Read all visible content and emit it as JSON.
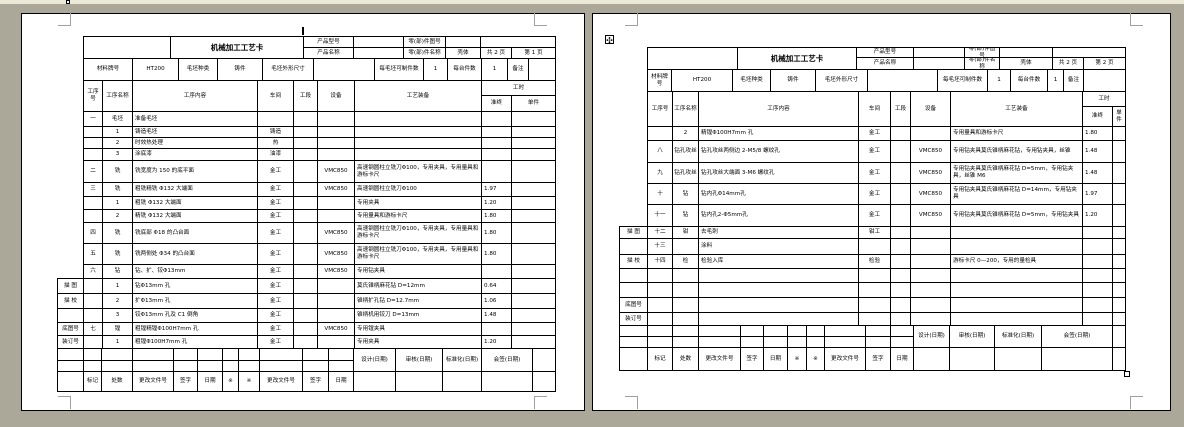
{
  "colors": {
    "workspace": "#aba899",
    "page": "#ffffff",
    "ruler": "#ece9d8",
    "grid": "#000000"
  },
  "icons": {
    "move_handle": "move-icon",
    "resize_handle": "resize-handle-icon",
    "text_cursor": "text-cursor"
  },
  "card": {
    "title": "机械加工工艺卡",
    "product_model_label": "产品型号",
    "product_name_label": "产品名称",
    "part_no_label": "零(部)件图号",
    "part_name_label": "零(部)件名称",
    "part_name": "壳体",
    "total_pages": "共 2 页",
    "material_label": "材料牌号",
    "material": "HT200",
    "blank_type_label": "毛坯种类",
    "blank_type": "铸件",
    "blank_size_label": "毛坯外形尺寸",
    "per_blank_label": "每毛坯可制件数",
    "per_blank": "1",
    "per_unit_label": "每台件数",
    "per_unit": "1",
    "remark_label": "备注",
    "headers": {
      "no": "工序号",
      "name": "工序名称",
      "content": "工序内容",
      "shop": "车间",
      "section": "工段",
      "equip": "设备",
      "tooling": "工艺装备",
      "time": "工时",
      "prep": "准终",
      "unit": "单件"
    },
    "footer": {
      "design": "设计(日期)",
      "review": "审核(日期)",
      "standard": "标准化(日期)",
      "sign": "会签(日期)",
      "mark": "标记",
      "count": "处数",
      "change_doc": "更改文件号",
      "signature": "签字",
      "date": "日期",
      "star": "※"
    }
  },
  "page1": {
    "page_no": "第 1 页",
    "rows": [
      {
        "side": "",
        "no": "一",
        "name": "毛坯",
        "content": "准备毛坯",
        "shop": "",
        "sec": "",
        "equip": "",
        "tool": "",
        "prep": "",
        "unit": ""
      },
      {
        "side": "",
        "no": "",
        "name": "1",
        "content": "铸造毛坯",
        "shop": "铸造",
        "sec": "",
        "equip": "",
        "tool": "",
        "prep": "",
        "unit": ""
      },
      {
        "side": "",
        "no": "",
        "name": "2",
        "content": "时效热处理",
        "shop": "热",
        "sec": "",
        "equip": "",
        "tool": "",
        "prep": "",
        "unit": ""
      },
      {
        "side": "",
        "no": "",
        "name": "3",
        "content": "涂底漆",
        "shop": "油漆",
        "sec": "",
        "equip": "",
        "tool": "",
        "prep": "",
        "unit": ""
      },
      {
        "side": "",
        "no": "二",
        "name": "铣",
        "content": "铣宽度为 150 的底平面",
        "shop": "金工",
        "sec": "",
        "equip": "VMC850",
        "tool": "高速钢圆柱立铣刀Φ100，专用夹具，专用量具和游标卡尺",
        "prep": "",
        "unit": ""
      },
      {
        "side": "",
        "no": "三",
        "name": "铣",
        "content": "粗铣精铣 Φ132 大端面",
        "shop": "金工",
        "sec": "",
        "equip": "VMC850",
        "tool": "高速钢圆柱立铣刀Φ100",
        "prep": "1.97",
        "unit": ""
      },
      {
        "side": "",
        "no": "",
        "name": "1",
        "content": "粗铣 Φ132 大端面",
        "shop": "金工",
        "sec": "",
        "equip": "",
        "tool": "专用夹具",
        "prep": "1.20",
        "unit": ""
      },
      {
        "side": "",
        "no": "",
        "name": "2",
        "content": "精铣 Φ132 大端面",
        "shop": "金工",
        "sec": "",
        "equip": "",
        "tool": "专用量具和游标卡尺",
        "prep": "1.80",
        "unit": ""
      },
      {
        "side": "",
        "no": "四",
        "name": "铣",
        "content": "铣底部 Φ18 的凸台面",
        "shop": "金工",
        "sec": "",
        "equip": "VMC850",
        "tool": "高速钢圆柱立铣刀Φ100，专用夹具，专用量具和游标卡尺",
        "prep": "1.80",
        "unit": ""
      },
      {
        "side": "",
        "no": "五",
        "name": "铣",
        "content": "铣两侧处 Φ34 的凸台面",
        "shop": "金工",
        "sec": "",
        "equip": "VMC850",
        "tool": "高速钢圆柱立铣刀Φ100，专用夹具，专用量具和游标卡尺",
        "prep": "1.80",
        "unit": ""
      },
      {
        "side": "",
        "no": "六",
        "name": "钻",
        "content": "钻、扩、铰Φ13mm",
        "shop": "金工",
        "sec": "",
        "equip": "VMC850",
        "tool": "专用钻夹具",
        "prep": "",
        "unit": ""
      },
      {
        "side": "描 图",
        "no": "",
        "name": "1",
        "content": "钻Φ13mm 孔",
        "shop": "金工",
        "sec": "",
        "equip": "",
        "tool": "莫氏锥柄麻花钻 D=12mm",
        "prep": "0.64",
        "unit": ""
      },
      {
        "side": "描 校",
        "no": "",
        "name": "2",
        "content": "扩Φ13mm 孔",
        "shop": "金工",
        "sec": "",
        "equip": "",
        "tool": "锥柄扩孔钻 D=12.7mm",
        "prep": "1.06",
        "unit": ""
      },
      {
        "side": "",
        "no": "",
        "name": "3",
        "content": "铰Φ13mm 孔及 C1 倒角",
        "shop": "金工",
        "sec": "",
        "equip": "",
        "tool": "锥柄机用铰刀 D=13mm",
        "prep": "1.48",
        "unit": ""
      },
      {
        "side": "底图号",
        "no": "七",
        "name": "镗",
        "content": "粗镗精镗Φ100H7mm 孔",
        "shop": "金工",
        "sec": "",
        "equip": "VMC850",
        "tool": "专用镗夹具",
        "prep": "",
        "unit": ""
      },
      {
        "side": "装订号",
        "no": "",
        "name": "1",
        "content": "粗镗Φ100H7mm 孔",
        "shop": "金工",
        "sec": "",
        "equip": "",
        "tool": "专用夹具",
        "prep": "1.20",
        "unit": ""
      }
    ]
  },
  "page2": {
    "page_no": "第 2 页",
    "rows": [
      {
        "side": "",
        "no": "",
        "name": "2",
        "content": "精镗Φ100H7mm 孔",
        "shop": "金工",
        "sec": "",
        "equip": "",
        "tool": "专用量具和游标卡尺",
        "prep": "1.80",
        "unit": ""
      },
      {
        "side": "",
        "no": "八",
        "name": "钻孔攻丝",
        "content": "钻孔攻丝两侧边 2-M5/8 螺纹孔",
        "shop": "金工",
        "sec": "",
        "equip": "VMC850",
        "tool": "专用钻夹具莫氏锥柄麻花钻，专用钻夹具，丝锥",
        "prep": "1.48",
        "unit": ""
      },
      {
        "side": "",
        "no": "九",
        "name": "钻孔攻丝",
        "content": "钻孔攻丝大端面 3-M6 螺纹孔",
        "shop": "金工",
        "sec": "",
        "equip": "VMC850",
        "tool": "专用钻夹具莫氏锥柄麻花钻 D=5mm，专用钻夹具，丝锥 M6",
        "prep": "1.48",
        "unit": ""
      },
      {
        "side": "",
        "no": "十",
        "name": "钻",
        "content": "钻内孔Φ14mm孔",
        "shop": "金工",
        "sec": "",
        "equip": "VMC850",
        "tool": "专用钻夹具莫氏锥柄麻花钻 D=14mm，专用钻夹具",
        "prep": "1.97",
        "unit": ""
      },
      {
        "side": "",
        "no": "十一",
        "name": "钻",
        "content": "钻内孔2-Φ5mm孔",
        "shop": "金工",
        "sec": "",
        "equip": "VMC850",
        "tool": "专用钻夹具莫氏锥柄麻花钻 D=5mm，专用钻夹具",
        "prep": "1.20",
        "unit": ""
      },
      {
        "side": "描 图",
        "no": "十二",
        "name": "钳",
        "content": "去毛刺",
        "shop": "钳工",
        "sec": "",
        "equip": "",
        "tool": "",
        "prep": "",
        "unit": ""
      },
      {
        "side": "",
        "no": "十三",
        "name": "",
        "content": "涂料",
        "shop": "",
        "sec": "",
        "equip": "",
        "tool": "",
        "prep": "",
        "unit": ""
      },
      {
        "side": "描 校",
        "no": "十四",
        "name": "检",
        "content": "检验入库",
        "shop": "检验",
        "sec": "",
        "equip": "",
        "tool": "游标卡尺 0—200，专用的量检具",
        "prep": "",
        "unit": ""
      },
      {
        "side": "",
        "no": "",
        "name": "",
        "content": "",
        "shop": "",
        "sec": "",
        "equip": "",
        "tool": "",
        "prep": "",
        "unit": ""
      },
      {
        "side": "",
        "no": "",
        "name": "",
        "content": "",
        "shop": "",
        "sec": "",
        "equip": "",
        "tool": "",
        "prep": "",
        "unit": ""
      },
      {
        "side": "底图号",
        "no": "",
        "name": "",
        "content": "",
        "shop": "",
        "sec": "",
        "equip": "",
        "tool": "",
        "prep": "",
        "unit": ""
      },
      {
        "side": "装订号",
        "no": "",
        "name": "",
        "content": "",
        "shop": "",
        "sec": "",
        "equip": "",
        "tool": "",
        "prep": "",
        "unit": ""
      }
    ]
  }
}
